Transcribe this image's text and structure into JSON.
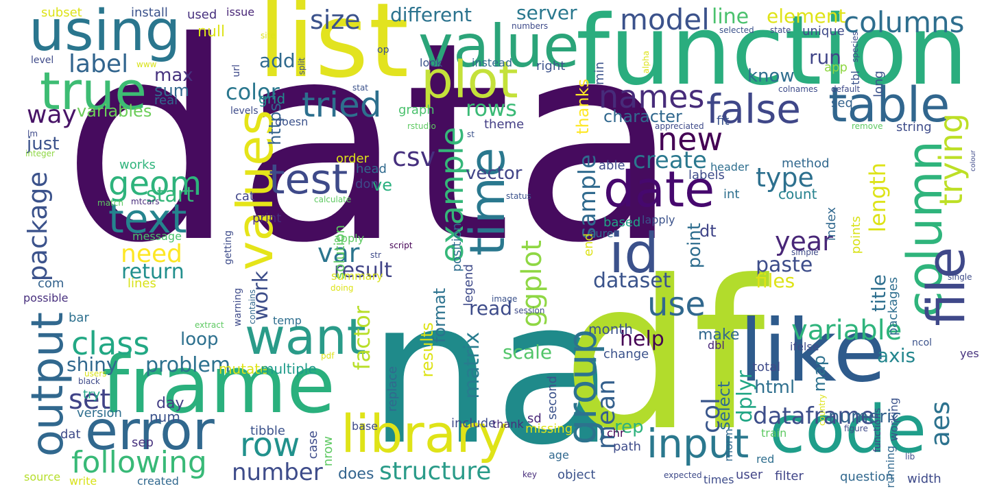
{
  "words": [
    {
      "text": "data",
      "color": "#460b5e"
    },
    {
      "text": "na",
      "color": "#1f8a8a"
    },
    {
      "text": "df",
      "color": "#b2dc2c"
    },
    {
      "text": "function",
      "color": "#2aad7e"
    },
    {
      "text": "list",
      "color": "#e2e31f"
    },
    {
      "text": "like",
      "color": "#2e5b8c"
    },
    {
      "text": "frame",
      "color": "#2ab07d"
    },
    {
      "text": "code",
      "color": "#1f9e8a"
    },
    {
      "text": "using",
      "color": "#2a768e"
    },
    {
      "text": "value",
      "color": "#2ba479"
    },
    {
      "text": "plot",
      "color": "#c4e13a"
    },
    {
      "text": "true",
      "color": "#3dbc73"
    },
    {
      "text": "error",
      "color": "#31688e"
    },
    {
      "text": "library",
      "color": "#dfe318"
    },
    {
      "text": "id",
      "color": "#3b518b"
    },
    {
      "text": "date",
      "color": "#46086e"
    },
    {
      "text": "table",
      "color": "#31668e"
    },
    {
      "text": "want",
      "color": "#2a9b89"
    },
    {
      "text": "output",
      "color": "#31688e"
    },
    {
      "text": "values",
      "color": "#e5e419"
    },
    {
      "text": "column",
      "color": "#2fb47c"
    },
    {
      "text": "file",
      "color": "#3f4889"
    },
    {
      "text": "time",
      "color": "#2a788e"
    },
    {
      "text": "test",
      "color": "#3e4a89"
    },
    {
      "text": "group",
      "color": "#2c738e"
    },
    {
      "text": "input",
      "color": "#2a788e"
    },
    {
      "text": "text",
      "color": "#25848e"
    },
    {
      "text": "false",
      "color": "#3f4788"
    },
    {
      "text": "names",
      "color": "#472c7a"
    },
    {
      "text": "class",
      "color": "#22a884"
    },
    {
      "text": "row",
      "color": "#21918c"
    },
    {
      "text": "following",
      "color": "#38b977"
    },
    {
      "text": "trying",
      "color": "#bddf26"
    },
    {
      "text": "example",
      "color": "#35b779"
    },
    {
      "text": "geom",
      "color": "#2eb37c"
    },
    {
      "text": "tried",
      "color": "#2d708e"
    },
    {
      "text": "model",
      "color": "#3b528b"
    },
    {
      "text": "columns",
      "color": "#2e6e8e"
    },
    {
      "text": "use",
      "color": "#31688e"
    },
    {
      "text": "new",
      "color": "#440154"
    },
    {
      "text": "variable",
      "color": "#2fb47c"
    },
    {
      "text": "aes",
      "color": "#2c728e"
    },
    {
      "text": "structure",
      "color": "#2a9b89"
    },
    {
      "text": "number",
      "color": "#3e4c8a"
    },
    {
      "text": "package",
      "color": "#3b528b"
    },
    {
      "text": "set",
      "color": "#404387"
    },
    {
      "text": "dataframe",
      "color": "#3d4e8a"
    },
    {
      "text": "create",
      "color": "#2a788e"
    },
    {
      "text": "type",
      "color": "#2d708e"
    },
    {
      "text": "year",
      "color": "#482677"
    },
    {
      "text": "csv",
      "color": "#46307e"
    },
    {
      "text": "var",
      "color": "#2b758e"
    },
    {
      "text": "need",
      "color": "#fde725"
    },
    {
      "text": "way",
      "color": "#481467"
    },
    {
      "text": "label",
      "color": "#32658e"
    },
    {
      "text": "size",
      "color": "#3b528b"
    },
    {
      "text": "rows",
      "color": "#3aba76"
    },
    {
      "text": "ggplot",
      "color": "#8fd744"
    },
    {
      "text": "color",
      "color": "#2a778e"
    },
    {
      "text": "length",
      "color": "#dde318"
    },
    {
      "text": "mean",
      "color": "#34608d"
    },
    {
      "text": "col",
      "color": "#39568c"
    },
    {
      "text": "sample",
      "color": "#306a8e"
    },
    {
      "text": "work",
      "color": "#3d4e8a"
    },
    {
      "text": "factor",
      "color": "#b8de29"
    },
    {
      "text": "matrix",
      "color": "#287c8e"
    },
    {
      "text": "dataset",
      "color": "#3a538b"
    },
    {
      "text": "result",
      "color": "#414487"
    },
    {
      "text": "paste",
      "color": "#3d4d8a"
    },
    {
      "text": "help",
      "color": "#440154"
    },
    {
      "text": "problem",
      "color": "#2c718e"
    },
    {
      "text": "shiny",
      "color": "#31688e"
    },
    {
      "text": "different",
      "color": "#2c738e"
    },
    {
      "text": "line",
      "color": "#4ac16d"
    },
    {
      "text": "element",
      "color": "#dfe318"
    },
    {
      "text": "server",
      "color": "#2a788e"
    },
    {
      "text": "character",
      "color": "#31688e"
    },
    {
      "text": "title",
      "color": "#2e6f8e"
    },
    {
      "text": "files",
      "color": "#dde318"
    },
    {
      "text": "dplyr",
      "color": "#21a685"
    },
    {
      "text": "scale",
      "color": "#52c569"
    },
    {
      "text": "axis",
      "color": "#24868e"
    },
    {
      "text": "html",
      "color": "#2e6f8e"
    },
    {
      "text": "read",
      "color": "#3e4c8a"
    },
    {
      "text": "loop",
      "color": "#2d708e"
    },
    {
      "text": "start",
      "color": "#35b779"
    },
    {
      "text": "return",
      "color": "#218f8d"
    },
    {
      "text": "add",
      "color": "#306a8e"
    },
    {
      "text": "max",
      "color": "#46327e"
    },
    {
      "text": "sum",
      "color": "#31688e"
    },
    {
      "text": "variables",
      "color": "#6ccd5a"
    },
    {
      "text": "know",
      "color": "#2e6e8e"
    },
    {
      "text": "run",
      "color": "#404588"
    },
    {
      "text": "just",
      "color": "#3b528b"
    },
    {
      "text": "vector",
      "color": "#414487"
    },
    {
      "text": "https",
      "color": "#33628d"
    },
    {
      "text": "ve",
      "color": "#2ab07f"
    },
    {
      "text": "results",
      "color": "#dde318"
    },
    {
      "text": "format",
      "color": "#2c728e"
    },
    {
      "text": "make",
      "color": "#31688e"
    },
    {
      "text": "select",
      "color": "#2f6c8e"
    },
    {
      "text": "rep",
      "color": "#2db27d"
    },
    {
      "text": "map",
      "color": "#2d718e"
    },
    {
      "text": "numeric",
      "color": "#33638d"
    },
    {
      "text": "point",
      "color": "#2e6d8e"
    },
    {
      "text": "dt",
      "color": "#404588"
    },
    {
      "text": "mutate",
      "color": "#dde318"
    },
    {
      "text": "multiple",
      "color": "#1e9b8a"
    },
    {
      "text": "month",
      "color": "#3b528b"
    },
    {
      "text": "thanks",
      "color": "#fde725"
    },
    {
      "text": "null",
      "color": "#dde318"
    },
    {
      "text": "grid",
      "color": "#228c8d"
    },
    {
      "text": "works",
      "color": "#2fb47c"
    },
    {
      "text": "print",
      "color": "#472d7b"
    },
    {
      "text": "does",
      "color": "#32648e"
    },
    {
      "text": "version",
      "color": "#2e6e8e"
    },
    {
      "text": "day",
      "color": "#433e85"
    },
    {
      "text": "bar",
      "color": "#2d708e"
    },
    {
      "text": "num",
      "color": "#3b528b"
    },
    {
      "text": "dat",
      "color": "#3e4a89"
    },
    {
      "text": "sep",
      "color": "#46327e"
    },
    {
      "text": "try",
      "color": "#20a486"
    },
    {
      "text": "tibble",
      "color": "#3b528b"
    },
    {
      "text": "com",
      "color": "#33628d"
    },
    {
      "text": "lines",
      "color": "#d8e219"
    },
    {
      "text": "possible",
      "color": "#472f7d"
    },
    {
      "text": "install",
      "color": "#3b528b"
    },
    {
      "text": "used",
      "color": "#46307e"
    },
    {
      "text": "issue",
      "color": "#482677"
    },
    {
      "text": "subset",
      "color": "#dde318"
    },
    {
      "text": "real",
      "color": "#31688e"
    },
    {
      "text": "message",
      "color": "#4ac16d"
    },
    {
      "text": "solution",
      "color": "#5ec962"
    },
    {
      "text": "head",
      "color": "#306a8e"
    },
    {
      "text": "order",
      "color": "#dde318"
    },
    {
      "text": "don",
      "color": "#3e4989"
    },
    {
      "text": "cat",
      "color": "#404588"
    },
    {
      "text": "apply",
      "color": "#5ec962"
    },
    {
      "text": "summary",
      "color": "#d8e219"
    },
    {
      "text": "position",
      "color": "#2e6e8e"
    },
    {
      "text": "legend",
      "color": "#3e4a89"
    },
    {
      "text": "theme",
      "color": "#433e85"
    },
    {
      "text": "graph",
      "color": "#4ac16d"
    },
    {
      "text": "instead",
      "color": "#31688e"
    },
    {
      "text": "look",
      "color": "#3b528b"
    },
    {
      "text": "right",
      "color": "#3b528b"
    },
    {
      "text": "min",
      "color": "#3b528b"
    },
    {
      "text": "able",
      "color": "#3e4989"
    },
    {
      "text": "labels",
      "color": "#3e4c8a"
    },
    {
      "text": "header",
      "color": "#2e6e8e"
    },
    {
      "text": "method",
      "color": "#31688e"
    },
    {
      "text": "int",
      "color": "#2e6f8e"
    },
    {
      "text": "count",
      "color": "#26828e"
    },
    {
      "text": "index",
      "color": "#31688e"
    },
    {
      "text": "points",
      "color": "#d8e219"
    },
    {
      "text": "packages",
      "color": "#2e6e8e"
    },
    {
      "text": "based",
      "color": "#20a486"
    },
    {
      "text": "lapply",
      "color": "#3b528b"
    },
    {
      "text": "end",
      "color": "#dde318"
    },
    {
      "text": "sure",
      "color": "#31688e"
    },
    {
      "text": "string",
      "color": "#3e4c8a"
    },
    {
      "text": "seq",
      "color": "#33628d"
    },
    {
      "text": "fit",
      "color": "#3b528b"
    },
    {
      "text": "unique",
      "color": "#3e4989"
    },
    {
      "text": "long",
      "color": "#3b528b"
    },
    {
      "text": "app",
      "color": "#8fd744"
    },
    {
      "text": "tbl",
      "color": "#3b528b"
    },
    {
      "text": "change",
      "color": "#3b528b"
    },
    {
      "text": "total",
      "color": "#3e4a89"
    },
    {
      "text": "second",
      "color": "#3b528b"
    },
    {
      "text": "sd",
      "color": "#482677"
    },
    {
      "text": "replace",
      "color": "#31688e"
    },
    {
      "text": "include",
      "color": "#3e4a89"
    },
    {
      "text": "thank",
      "color": "#472d7b"
    },
    {
      "text": "missing",
      "color": "#dde318"
    },
    {
      "text": "case",
      "color": "#3e4c8a"
    },
    {
      "text": "nrow",
      "color": "#5ec962"
    },
    {
      "text": "base",
      "color": "#3e4a89"
    },
    {
      "text": "age",
      "color": "#31688e"
    },
    {
      "text": "object",
      "color": "#3b528b"
    },
    {
      "text": "path",
      "color": "#3e4c8a"
    },
    {
      "text": "chr",
      "color": "#440154"
    },
    {
      "text": "user",
      "color": "#414487"
    },
    {
      "text": "filter",
      "color": "#404588"
    },
    {
      "text": "question",
      "color": "#31688e"
    },
    {
      "text": "width",
      "color": "#3e4a89"
    },
    {
      "text": "working",
      "color": "#3b528b"
    },
    {
      "text": "running",
      "color": "#31688e"
    },
    {
      "text": "functions",
      "color": "#3e4a89"
    },
    {
      "text": "train",
      "color": "#5ec962"
    },
    {
      "text": "rnorm",
      "color": "#31688e"
    },
    {
      "text": "red",
      "color": "#2e6e8e"
    },
    {
      "text": "ifelse",
      "color": "#3e4a89"
    },
    {
      "text": "yes",
      "color": "#46327e"
    },
    {
      "text": "ncol",
      "color": "#3b528b"
    },
    {
      "text": "dbl",
      "color": "#482677"
    },
    {
      "text": "times",
      "color": "#3e4c8a"
    },
    {
      "text": "source",
      "color": "#b5de2b"
    },
    {
      "text": "write",
      "color": "#d8e219"
    },
    {
      "text": "created",
      "color": "#31688e"
    },
    {
      "text": "users",
      "color": "#d8e219"
    },
    {
      "text": "black",
      "color": "#3e4a89"
    },
    {
      "text": "pdf",
      "color": "#dde318"
    },
    {
      "text": "extract",
      "color": "#5ec962"
    },
    {
      "text": "temp",
      "color": "#2e6e8e"
    },
    {
      "text": "warning",
      "color": "#3e4a89"
    },
    {
      "text": "getting",
      "color": "#3e4c8a"
    },
    {
      "text": "contains",
      "color": "#31688e"
    },
    {
      "text": "doing",
      "color": "#dde318"
    },
    {
      "text": "image",
      "color": "#3b528b"
    },
    {
      "text": "session",
      "color": "#3e4a89"
    },
    {
      "text": "doesn",
      "color": "#3b528b"
    },
    {
      "text": "levels",
      "color": "#3e4c8a"
    },
    {
      "text": "lm",
      "color": "#3e4989"
    },
    {
      "text": "integer",
      "color": "#8fd744"
    },
    {
      "text": "match",
      "color": "#5ec962"
    },
    {
      "text": "mtcars",
      "color": "#472d7b"
    },
    {
      "text": "calculate",
      "color": "#5ec962"
    },
    {
      "text": "status",
      "color": "#3b528b"
    },
    {
      "text": "script",
      "color": "#440154"
    },
    {
      "text": "str",
      "color": "#3e4a89"
    },
    {
      "text": "simple",
      "color": "#3e4a89"
    },
    {
      "text": "single",
      "color": "#3e4c8a"
    },
    {
      "text": "country",
      "color": "#dde318"
    },
    {
      "text": "figure",
      "color": "#3e4a89"
    },
    {
      "text": "key",
      "color": "#472d7b"
    },
    {
      "text": "lib",
      "color": "#3e4c8a"
    },
    {
      "text": "expected",
      "color": "#3e4a89"
    },
    {
      "text": "url",
      "color": "#3e4a89"
    },
    {
      "text": "stat",
      "color": "#3b528b"
    },
    {
      "text": "split",
      "color": "#3e4c8a"
    },
    {
      "text": "www",
      "color": "#d8e219"
    },
    {
      "text": "level",
      "color": "#3e4a89"
    },
    {
      "text": "op",
      "color": "#3b528b"
    },
    {
      "text": "site",
      "color": "#dde318"
    },
    {
      "text": "numbers",
      "color": "#3e4a89"
    },
    {
      "text": "alpha",
      "color": "#dde318"
    },
    {
      "text": "rstudio",
      "color": "#5ec962"
    },
    {
      "text": "st",
      "color": "#3b528b"
    },
    {
      "text": "appreciated",
      "color": "#3e4a89"
    },
    {
      "text": "colnames",
      "color": "#3e4c8a"
    },
    {
      "text": "default",
      "color": "#3e4a89"
    },
    {
      "text": "selected",
      "color": "#3b528b"
    },
    {
      "text": "state",
      "color": "#3e4a89"
    },
    {
      "text": "species",
      "color": "#3e4c8a"
    },
    {
      "text": "remove",
      "color": "#5ec962"
    },
    {
      "text": "colour",
      "color": "#3e4a89"
    }
  ]
}
